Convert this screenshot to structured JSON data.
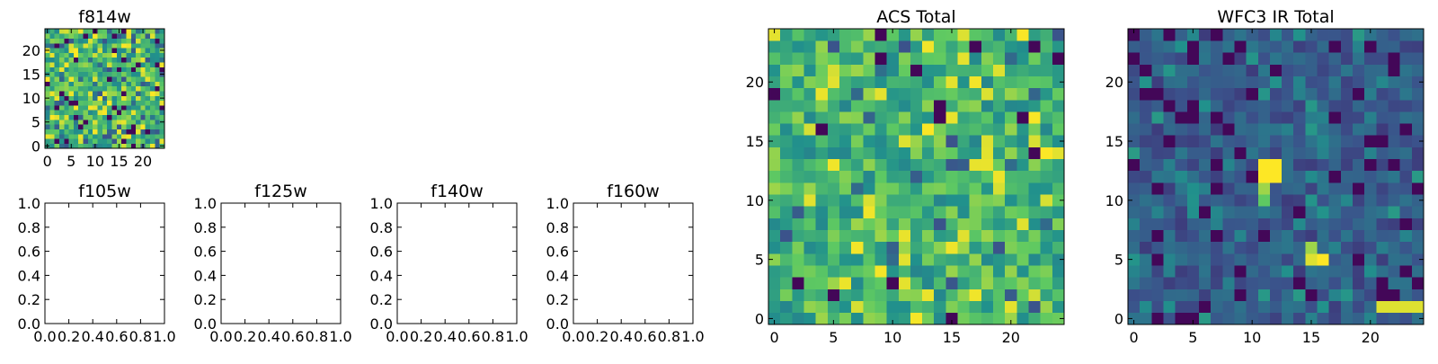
{
  "colormap": [
    "#440154",
    "#3b528b",
    "#21918c",
    "#5ec962",
    "#fde725"
  ],
  "chart_data": [
    {
      "id": "f814w",
      "type": "heatmap",
      "title": "f814w",
      "grid_size": 25,
      "xlim": [
        -0.5,
        24.5
      ],
      "ylim": [
        -0.5,
        24.5
      ],
      "xticks": [
        0,
        5,
        10,
        15,
        20
      ],
      "yticks": [
        0,
        5,
        10,
        15,
        20
      ],
      "xticklabels": [
        "0",
        "5",
        "10",
        "15",
        "20"
      ],
      "yticklabels": [
        "0",
        "5",
        "10",
        "15",
        "20"
      ],
      "pattern": "noise",
      "seed": 11,
      "blobs": []
    },
    {
      "id": "f105w",
      "type": "empty",
      "title": "f105w",
      "xlim": [
        0.0,
        1.0
      ],
      "ylim": [
        0.0,
        1.0
      ],
      "xticks": [
        0.0,
        0.2,
        0.4,
        0.6,
        0.8,
        1.0
      ],
      "yticks": [
        0.0,
        0.2,
        0.4,
        0.6,
        0.8,
        1.0
      ],
      "xticklabels": [
        "0.0",
        "0.2",
        "0.4",
        "0.6",
        "0.8",
        "1.0"
      ],
      "yticklabels": [
        "0.0",
        "0.2",
        "0.4",
        "0.6",
        "0.8",
        "1.0"
      ]
    },
    {
      "id": "f125w",
      "type": "empty",
      "title": "f125w",
      "xlim": [
        0.0,
        1.0
      ],
      "ylim": [
        0.0,
        1.0
      ],
      "xticks": [
        0.0,
        0.2,
        0.4,
        0.6,
        0.8,
        1.0
      ],
      "yticks": [
        0.0,
        0.2,
        0.4,
        0.6,
        0.8,
        1.0
      ],
      "xticklabels": [
        "0.0",
        "0.2",
        "0.4",
        "0.6",
        "0.8",
        "1.0"
      ],
      "yticklabels": [
        "0.0",
        "0.2",
        "0.4",
        "0.6",
        "0.8",
        "1.0"
      ]
    },
    {
      "id": "f140w",
      "type": "empty",
      "title": "f140w",
      "xlim": [
        0.0,
        1.0
      ],
      "ylim": [
        0.0,
        1.0
      ],
      "xticks": [
        0.0,
        0.2,
        0.4,
        0.6,
        0.8,
        1.0
      ],
      "yticks": [
        0.0,
        0.2,
        0.4,
        0.6,
        0.8,
        1.0
      ],
      "xticklabels": [
        "0.0",
        "0.2",
        "0.4",
        "0.6",
        "0.8",
        "1.0"
      ],
      "yticklabels": [
        "0.0",
        "0.2",
        "0.4",
        "0.6",
        "0.8",
        "1.0"
      ]
    },
    {
      "id": "f160w",
      "type": "empty",
      "title": "f160w",
      "xlim": [
        0.0,
        1.0
      ],
      "ylim": [
        0.0,
        1.0
      ],
      "xticks": [
        0.0,
        0.2,
        0.4,
        0.6,
        0.8,
        1.0
      ],
      "yticks": [
        0.0,
        0.2,
        0.4,
        0.6,
        0.8,
        1.0
      ],
      "xticklabels": [
        "0.0",
        "0.2",
        "0.4",
        "0.6",
        "0.8",
        "1.0"
      ],
      "yticklabels": [
        "0.0",
        "0.2",
        "0.4",
        "0.6",
        "0.8",
        "1.0"
      ]
    },
    {
      "id": "acs_total",
      "type": "heatmap",
      "title": "ACS Total",
      "grid_size": 25,
      "xlim": [
        -0.5,
        24.5
      ],
      "ylim": [
        -0.5,
        24.5
      ],
      "xticks": [
        0,
        5,
        10,
        15,
        20
      ],
      "yticks": [
        0,
        5,
        10,
        15,
        20
      ],
      "xticklabels": [
        "0",
        "5",
        "10",
        "15",
        "20"
      ],
      "yticklabels": [
        "0",
        "5",
        "10",
        "15",
        "20"
      ],
      "pattern": "noise-bright",
      "seed": 42,
      "blobs": []
    },
    {
      "id": "wfc3_ir_total",
      "type": "heatmap",
      "title": "WFC3 IR Total",
      "grid_size": 25,
      "xlim": [
        -0.5,
        24.5
      ],
      "ylim": [
        -0.5,
        24.5
      ],
      "xticks": [
        0,
        5,
        10,
        15,
        20
      ],
      "yticks": [
        0,
        5,
        10,
        15,
        20
      ],
      "xticklabels": [
        "0",
        "5",
        "10",
        "15",
        "20"
      ],
      "yticklabels": [
        "0",
        "5",
        "10",
        "15",
        "20"
      ],
      "pattern": "noise-dark",
      "seed": 7,
      "blobs": [
        {
          "x": 11,
          "y": 13,
          "v": 1.0
        },
        {
          "x": 12,
          "y": 13,
          "v": 1.0
        },
        {
          "x": 11,
          "y": 12,
          "v": 1.0
        },
        {
          "x": 12,
          "y": 12,
          "v": 1.0
        },
        {
          "x": 11,
          "y": 11,
          "v": 0.85
        },
        {
          "x": 11,
          "y": 10,
          "v": 0.75
        },
        {
          "x": 15,
          "y": 6,
          "v": 0.85
        },
        {
          "x": 15,
          "y": 5,
          "v": 0.95
        },
        {
          "x": 16,
          "y": 5,
          "v": 1.0
        },
        {
          "x": 21,
          "y": 1,
          "v": 0.95
        },
        {
          "x": 22,
          "y": 1,
          "v": 0.95
        },
        {
          "x": 23,
          "y": 1,
          "v": 0.95
        },
        {
          "x": 24,
          "y": 1,
          "v": 0.95
        }
      ]
    }
  ]
}
